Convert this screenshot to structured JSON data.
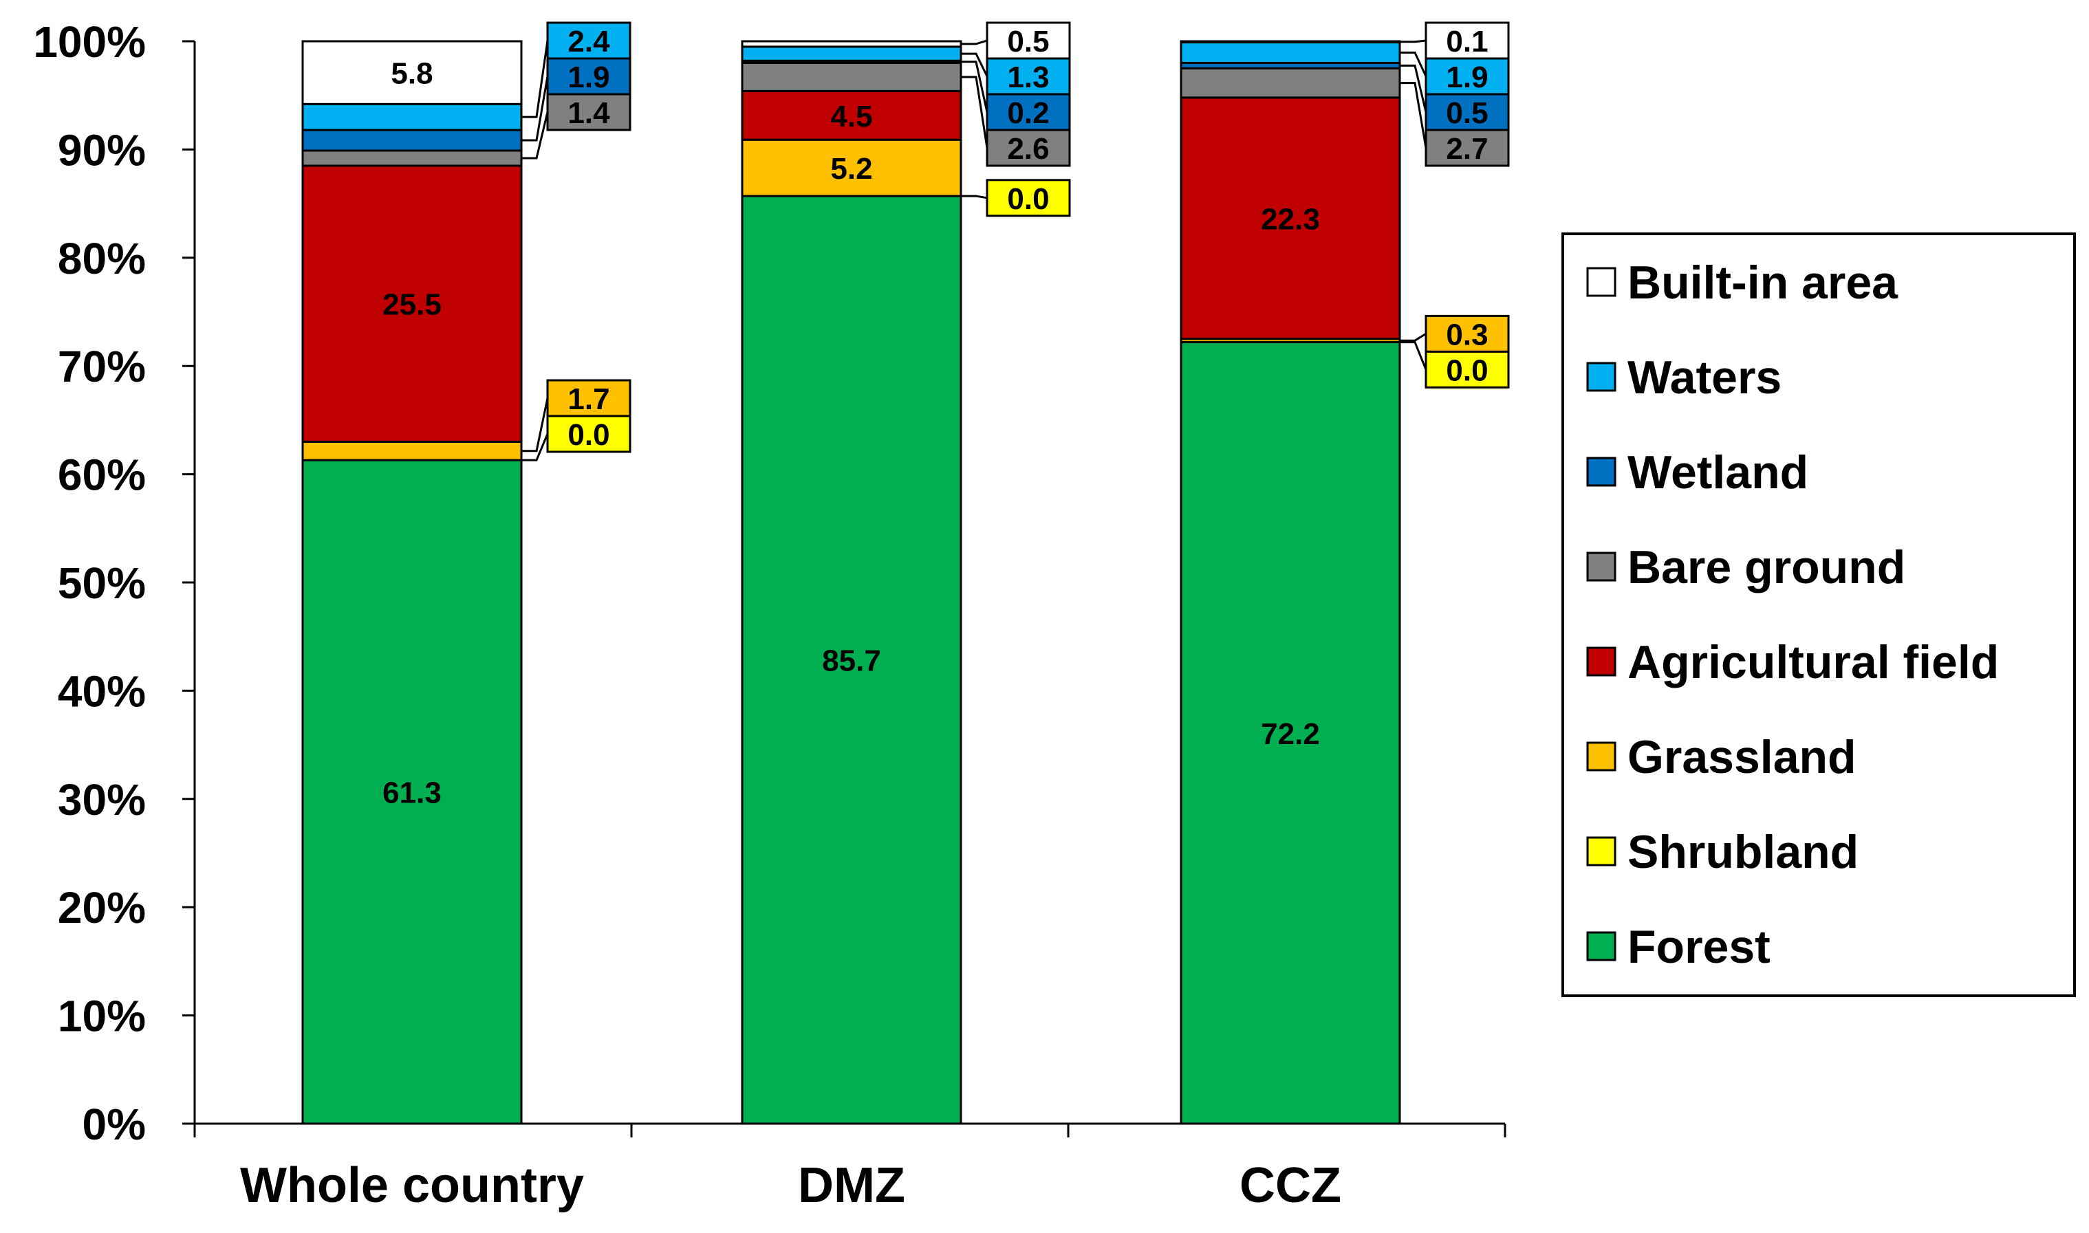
{
  "chart_data": {
    "type": "bar",
    "stacked": true,
    "percent": true,
    "categories": [
      "Whole country",
      "DMZ",
      "CCZ"
    ],
    "series": [
      {
        "name": "Forest",
        "color": "#00b050",
        "values": [
          61.3,
          85.7,
          72.2
        ]
      },
      {
        "name": "Shrubland",
        "color": "#ffff00",
        "values": [
          0.0,
          0.0,
          0.0
        ]
      },
      {
        "name": "Grassland",
        "color": "#ffc000",
        "values": [
          1.7,
          5.2,
          0.3
        ]
      },
      {
        "name": "Agricultural field",
        "color": "#c00000",
        "values": [
          25.5,
          4.5,
          22.3
        ]
      },
      {
        "name": "Bare ground",
        "color": "#808080",
        "values": [
          1.4,
          2.6,
          2.7
        ]
      },
      {
        "name": "Wetland",
        "color": "#0070c0",
        "values": [
          1.9,
          0.2,
          0.5
        ]
      },
      {
        "name": "Waters",
        "color": "#00b0f0",
        "values": [
          2.4,
          1.3,
          1.9
        ]
      },
      {
        "name": "Built-in area",
        "color": "#ffffff",
        "values": [
          5.8,
          0.5,
          0.1
        ]
      }
    ],
    "value_labels": [
      [
        "61.3",
        "0.0",
        "1.7",
        "25.5",
        "1.4",
        "1.9",
        "2.4",
        "5.8"
      ],
      [
        "85.7",
        "0.0",
        "5.2",
        "4.5",
        "2.6",
        "0.2",
        "1.3",
        "0.5"
      ],
      [
        "72.2",
        "0.0",
        "0.3",
        "22.3",
        "2.7",
        "0.5",
        "1.9",
        "0.1"
      ]
    ],
    "yticks": [
      "0%",
      "10%",
      "20%",
      "30%",
      "40%",
      "50%",
      "60%",
      "70%",
      "80%",
      "90%",
      "100%"
    ],
    "ylim": [
      0,
      100
    ],
    "legend_position": "right",
    "legend_order": [
      "Built-in area",
      "Waters",
      "Wetland",
      "Bare ground",
      "Agricultural field",
      "Grassland",
      "Shrubland",
      "Forest"
    ],
    "title": "",
    "xlabel": "",
    "ylabel": ""
  }
}
